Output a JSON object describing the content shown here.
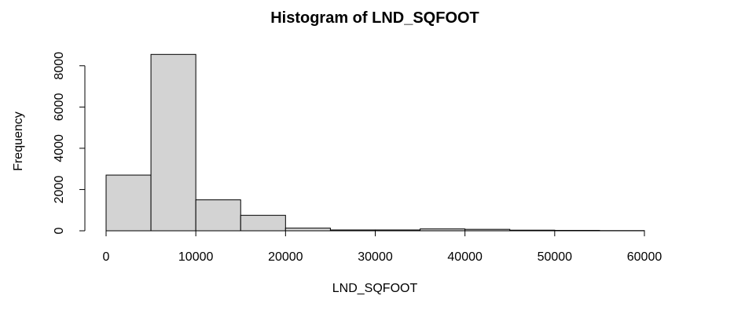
{
  "chart_data": {
    "type": "bar",
    "title": "Histogram of LND_SQFOOT",
    "xlabel": "LND_SQFOOT",
    "ylabel": "Frequency",
    "bin_width": 5000,
    "bins": [
      0,
      5000,
      10000,
      15000,
      20000,
      25000,
      30000,
      35000,
      40000,
      45000,
      50000,
      55000
    ],
    "values": [
      2700,
      8550,
      1500,
      750,
      130,
      40,
      40,
      90,
      70,
      30,
      20,
      10
    ],
    "xlim": [
      0,
      60000
    ],
    "ylim": [
      0,
      8600
    ],
    "x_ticks": [
      0,
      10000,
      20000,
      30000,
      40000,
      50000,
      60000
    ],
    "x_tick_labels": [
      "0",
      "10000",
      "20000",
      "30000",
      "40000",
      "50000",
      "60000"
    ],
    "y_ticks": [
      0,
      2000,
      4000,
      6000,
      8000
    ],
    "y_tick_labels": [
      "0",
      "2000",
      "4000",
      "6000",
      "8000"
    ],
    "grid": false,
    "colors": {
      "bar_fill": "#d3d3d3",
      "bar_stroke": "#000000"
    }
  }
}
